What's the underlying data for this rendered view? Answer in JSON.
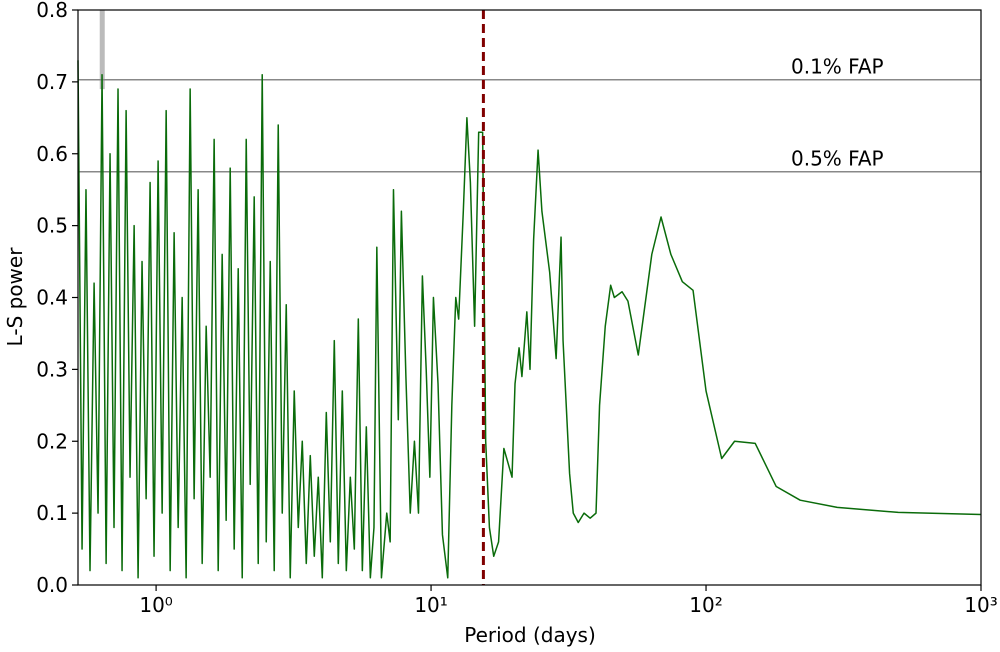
{
  "chart_data": {
    "type": "line",
    "xlabel": "Period (days)",
    "ylabel": "L-S power",
    "xscale": "log",
    "xlim": [
      0.52,
      1000
    ],
    "ylim": [
      0,
      0.8
    ],
    "xticks": [
      {
        "value": 1,
        "label": "10⁰"
      },
      {
        "value": 10,
        "label": "10¹"
      },
      {
        "value": 100,
        "label": "10²"
      },
      {
        "value": 1000,
        "label": "10³"
      }
    ],
    "yticks": [
      {
        "value": 0,
        "label": "0.0"
      },
      0.1,
      0.2,
      0.3,
      0.4,
      0.5,
      0.6,
      0.7,
      0.8
    ],
    "color": "#0a6b0a",
    "x": [
      0.52,
      0.538,
      0.556,
      0.575,
      0.595,
      0.615,
      0.636,
      0.658,
      0.68,
      0.703,
      0.727,
      0.752,
      0.778,
      0.804,
      0.832,
      0.86,
      0.889,
      0.92,
      0.951,
      0.983,
      1.017,
      1.052,
      1.088,
      1.125,
      1.163,
      1.203,
      1.244,
      1.286,
      1.33,
      1.375,
      1.422,
      1.471,
      1.521,
      1.573,
      1.626,
      1.682,
      1.739,
      1.798,
      1.86,
      1.923,
      1.989,
      2.057,
      2.127,
      2.199,
      2.274,
      2.352,
      2.432,
      2.515,
      2.601,
      2.689,
      2.781,
      2.876,
      2.974,
      3.075,
      3.18,
      3.289,
      3.401,
      3.517,
      3.637,
      3.761,
      3.889,
      4.022,
      4.159,
      4.301,
      4.447,
      4.599,
      4.756,
      4.918,
      5.086,
      5.259,
      5.438,
      5.624,
      5.815,
      6.014,
      6.2,
      6.35,
      6.6,
      6.9,
      7.1,
      7.3,
      7.6,
      7.8,
      8.1,
      8.4,
      8.7,
      9.0,
      9.3,
      9.6,
      9.9,
      10.2,
      10.6,
      11.0,
      11.5,
      11.9,
      12.3,
      12.6,
      13.1,
      13.5,
      13.9,
      14.4,
      14.9,
      15.4,
      15.8,
      16.3,
      16.9,
      17.6,
      18.4,
      19.7,
      20.2,
      20.9,
      21.4,
      22.3,
      22.9,
      23.6,
      24.5,
      25.3,
      27,
      28.5,
      29.7,
      30.2,
      31.9,
      32.9,
      34.3,
      36,
      37.9,
      39.8,
      41,
      43,
      45,
      46.4,
      49.5,
      52,
      56.7,
      63.5,
      68.6,
      74.5,
      82,
      89.7,
      100,
      114,
      127,
      151,
      180,
      220,
      300,
      500,
      1000
    ],
    "values": [
      0.73,
      0.05,
      0.55,
      0.02,
      0.42,
      0.1,
      0.71,
      0.03,
      0.6,
      0.08,
      0.69,
      0.02,
      0.66,
      0.15,
      0.5,
      0.01,
      0.45,
      0.12,
      0.56,
      0.04,
      0.59,
      0.1,
      0.66,
      0.02,
      0.49,
      0.08,
      0.4,
      0.01,
      0.69,
      0.12,
      0.55,
      0.03,
      0.36,
      0.15,
      0.62,
      0.02,
      0.46,
      0.09,
      0.58,
      0.05,
      0.44,
      0.01,
      0.62,
      0.14,
      0.54,
      0.03,
      0.71,
      0.06,
      0.45,
      0.02,
      0.64,
      0.1,
      0.39,
      0.01,
      0.27,
      0.08,
      0.2,
      0.03,
      0.18,
      0.04,
      0.15,
      0.01,
      0.24,
      0.06,
      0.34,
      0.03,
      0.27,
      0.02,
      0.15,
      0.05,
      0.37,
      0.02,
      0.22,
      0.01,
      0.08,
      0.47,
      0.01,
      0.1,
      0.06,
      0.55,
      0.23,
      0.52,
      0.29,
      0.1,
      0.2,
      0.1,
      0.43,
      0.3,
      0.15,
      0.4,
      0.28,
      0.07,
      0.01,
      0.25,
      0.4,
      0.37,
      0.52,
      0.65,
      0.56,
      0.36,
      0.63,
      0.63,
      0.2,
      0.08,
      0.04,
      0.06,
      0.19,
      0.15,
      0.28,
      0.33,
      0.29,
      0.38,
      0.3,
      0.48,
      0.605,
      0.52,
      0.435,
      0.315,
      0.484,
      0.34,
      0.155,
      0.1,
      0.087,
      0.1,
      0.093,
      0.1,
      0.25,
      0.36,
      0.417,
      0.4,
      0.408,
      0.395,
      0.32,
      0.46,
      0.512,
      0.46,
      0.422,
      0.41,
      0.27,
      0.176,
      0.2,
      0.197,
      0.137,
      0.118,
      0.108,
      0.101,
      0.098
    ],
    "hlines": [
      {
        "y": 0.703,
        "label": "0.1% FAP",
        "color": "#888888"
      },
      {
        "y": 0.575,
        "label": "0.5% FAP",
        "color": "#888888"
      }
    ],
    "vline": {
      "x": 15.5,
      "color": "#800000"
    },
    "gray_line": {
      "x": 0.637,
      "y": [
        0.69,
        0.8
      ],
      "color": "#bbbbbb"
    }
  }
}
